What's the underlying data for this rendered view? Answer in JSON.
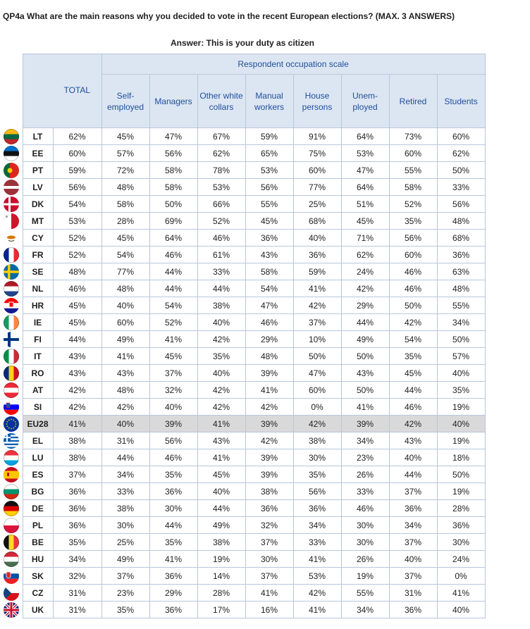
{
  "question": "QP4a What are the main reasons why you decided to vote in the recent European elections? (MAX. 3 ANSWERS)",
  "answer_label": "Answer: This is your duty as citizen",
  "table": {
    "group_header": "Respondent occupation scale",
    "total_header": "TOTAL",
    "columns": [
      {
        "line1": "Self-",
        "line2": "employed"
      },
      {
        "line1": "Managers",
        "line2": ""
      },
      {
        "line1": "Other white",
        "line2": "collars"
      },
      {
        "line1": "Manual",
        "line2": "workers"
      },
      {
        "line1": "House",
        "line2": "persons"
      },
      {
        "line1": "Unem-",
        "line2": "ployed"
      },
      {
        "line1": "Retired",
        "line2": ""
      },
      {
        "line1": "Students",
        "line2": ""
      }
    ],
    "rows": [
      {
        "code": "LT",
        "flag": "LT",
        "values": [
          "62%",
          "45%",
          "47%",
          "67%",
          "59%",
          "91%",
          "64%",
          "73%",
          "60%"
        ]
      },
      {
        "code": "EE",
        "flag": "EE",
        "values": [
          "60%",
          "57%",
          "56%",
          "62%",
          "65%",
          "75%",
          "53%",
          "60%",
          "62%"
        ]
      },
      {
        "code": "PT",
        "flag": "PT",
        "values": [
          "59%",
          "72%",
          "58%",
          "78%",
          "53%",
          "60%",
          "47%",
          "55%",
          "50%"
        ]
      },
      {
        "code": "LV",
        "flag": "LV",
        "values": [
          "56%",
          "48%",
          "58%",
          "53%",
          "56%",
          "77%",
          "64%",
          "58%",
          "33%"
        ]
      },
      {
        "code": "DK",
        "flag": "DK",
        "values": [
          "54%",
          "58%",
          "50%",
          "66%",
          "55%",
          "25%",
          "51%",
          "52%",
          "56%"
        ]
      },
      {
        "code": "MT",
        "flag": "MT",
        "values": [
          "53%",
          "28%",
          "69%",
          "52%",
          "45%",
          "68%",
          "45%",
          "35%",
          "48%"
        ]
      },
      {
        "code": "CY",
        "flag": "CY",
        "values": [
          "52%",
          "45%",
          "64%",
          "46%",
          "36%",
          "40%",
          "71%",
          "56%",
          "68%"
        ]
      },
      {
        "code": "FR",
        "flag": "FR",
        "values": [
          "52%",
          "54%",
          "46%",
          "61%",
          "43%",
          "36%",
          "62%",
          "60%",
          "36%"
        ]
      },
      {
        "code": "SE",
        "flag": "SE",
        "values": [
          "48%",
          "77%",
          "44%",
          "33%",
          "58%",
          "59%",
          "24%",
          "46%",
          "63%"
        ]
      },
      {
        "code": "NL",
        "flag": "NL",
        "values": [
          "46%",
          "48%",
          "44%",
          "44%",
          "54%",
          "41%",
          "42%",
          "46%",
          "48%"
        ]
      },
      {
        "code": "HR",
        "flag": "HR",
        "values": [
          "45%",
          "40%",
          "54%",
          "38%",
          "47%",
          "42%",
          "29%",
          "50%",
          "55%"
        ]
      },
      {
        "code": "IE",
        "flag": "IE",
        "values": [
          "45%",
          "60%",
          "52%",
          "40%",
          "46%",
          "37%",
          "44%",
          "42%",
          "34%"
        ]
      },
      {
        "code": "FI",
        "flag": "FI",
        "values": [
          "44%",
          "49%",
          "41%",
          "42%",
          "29%",
          "10%",
          "49%",
          "54%",
          "50%"
        ]
      },
      {
        "code": "IT",
        "flag": "IT",
        "values": [
          "43%",
          "41%",
          "45%",
          "35%",
          "48%",
          "50%",
          "50%",
          "35%",
          "57%"
        ]
      },
      {
        "code": "RO",
        "flag": "RO",
        "values": [
          "43%",
          "43%",
          "37%",
          "40%",
          "39%",
          "47%",
          "43%",
          "45%",
          "40%"
        ]
      },
      {
        "code": "AT",
        "flag": "AT",
        "values": [
          "42%",
          "48%",
          "32%",
          "42%",
          "41%",
          "60%",
          "50%",
          "44%",
          "35%"
        ]
      },
      {
        "code": "SI",
        "flag": "SI",
        "values": [
          "42%",
          "42%",
          "40%",
          "42%",
          "42%",
          "0%",
          "41%",
          "46%",
          "19%"
        ]
      },
      {
        "code": "EU28",
        "flag": "EU",
        "highlight": true,
        "values": [
          "41%",
          "40%",
          "39%",
          "41%",
          "39%",
          "42%",
          "39%",
          "42%",
          "40%"
        ]
      },
      {
        "code": "EL",
        "flag": "EL",
        "values": [
          "38%",
          "31%",
          "56%",
          "43%",
          "42%",
          "38%",
          "34%",
          "43%",
          "19%"
        ]
      },
      {
        "code": "LU",
        "flag": "LU",
        "values": [
          "38%",
          "44%",
          "46%",
          "41%",
          "39%",
          "30%",
          "23%",
          "40%",
          "18%"
        ]
      },
      {
        "code": "ES",
        "flag": "ES",
        "values": [
          "37%",
          "34%",
          "35%",
          "45%",
          "39%",
          "35%",
          "26%",
          "44%",
          "50%"
        ]
      },
      {
        "code": "BG",
        "flag": "BG",
        "values": [
          "36%",
          "33%",
          "36%",
          "40%",
          "38%",
          "56%",
          "33%",
          "37%",
          "19%"
        ]
      },
      {
        "code": "DE",
        "flag": "DE",
        "values": [
          "36%",
          "38%",
          "30%",
          "44%",
          "36%",
          "36%",
          "46%",
          "36%",
          "28%"
        ]
      },
      {
        "code": "PL",
        "flag": "PL",
        "values": [
          "36%",
          "30%",
          "44%",
          "49%",
          "32%",
          "34%",
          "30%",
          "34%",
          "36%"
        ]
      },
      {
        "code": "BE",
        "flag": "BE",
        "values": [
          "35%",
          "25%",
          "35%",
          "38%",
          "37%",
          "33%",
          "30%",
          "37%",
          "30%"
        ]
      },
      {
        "code": "HU",
        "flag": "HU",
        "values": [
          "34%",
          "49%",
          "41%",
          "19%",
          "30%",
          "41%",
          "26%",
          "40%",
          "24%"
        ]
      },
      {
        "code": "SK",
        "flag": "SK",
        "values": [
          "32%",
          "37%",
          "36%",
          "14%",
          "37%",
          "53%",
          "19%",
          "37%",
          "0%"
        ]
      },
      {
        "code": "CZ",
        "flag": "CZ",
        "values": [
          "31%",
          "23%",
          "29%",
          "28%",
          "41%",
          "42%",
          "55%",
          "31%",
          "41%"
        ]
      },
      {
        "code": "UK",
        "flag": "UK",
        "values": [
          "31%",
          "35%",
          "36%",
          "17%",
          "16%",
          "41%",
          "34%",
          "36%",
          "40%"
        ]
      }
    ]
  }
}
